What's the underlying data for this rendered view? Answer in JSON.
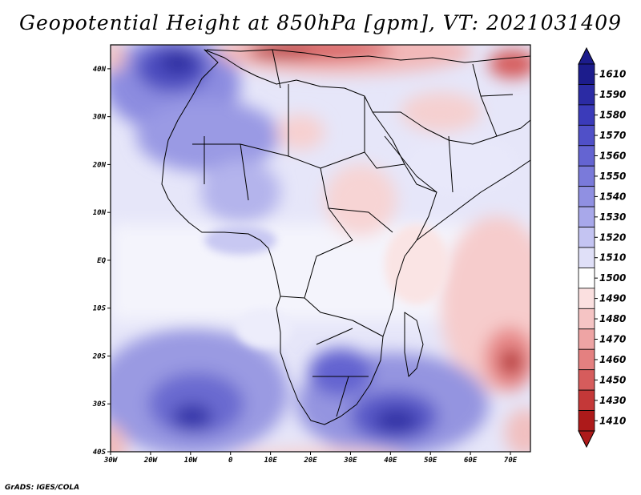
{
  "title": "Geopotential Height at 850hPa [gpm], VT: 2021031409",
  "credit": "GrADS: IGES/COLA",
  "map": {
    "lon_ticks": [
      "30W",
      "20W",
      "10W",
      "0",
      "10E",
      "20E",
      "30E",
      "40E",
      "50E",
      "60E",
      "70E"
    ],
    "lat_ticks": [
      "40N",
      "30N",
      "20N",
      "10N",
      "EQ",
      "10S",
      "20S",
      "30S",
      "40S"
    ]
  },
  "colorbar": {
    "labels": [
      "1610",
      "1590",
      "1580",
      "1570",
      "1560",
      "1550",
      "1540",
      "1530",
      "1520",
      "1510",
      "1500",
      "1490",
      "1480",
      "1470",
      "1460",
      "1450",
      "1430",
      "1410"
    ],
    "colors": [
      "#1c1c8c",
      "#2b2ba4",
      "#3b3bba",
      "#5050c8",
      "#6464d2",
      "#7a7ada",
      "#9090e2",
      "#a8a8ea",
      "#c4c4f2",
      "#e0e0f8",
      "#ffffff",
      "#fbe0e0",
      "#f5c4c4",
      "#eea4a4",
      "#e48080",
      "#d65c5c",
      "#c43838",
      "#ad1a1a"
    ]
  }
}
